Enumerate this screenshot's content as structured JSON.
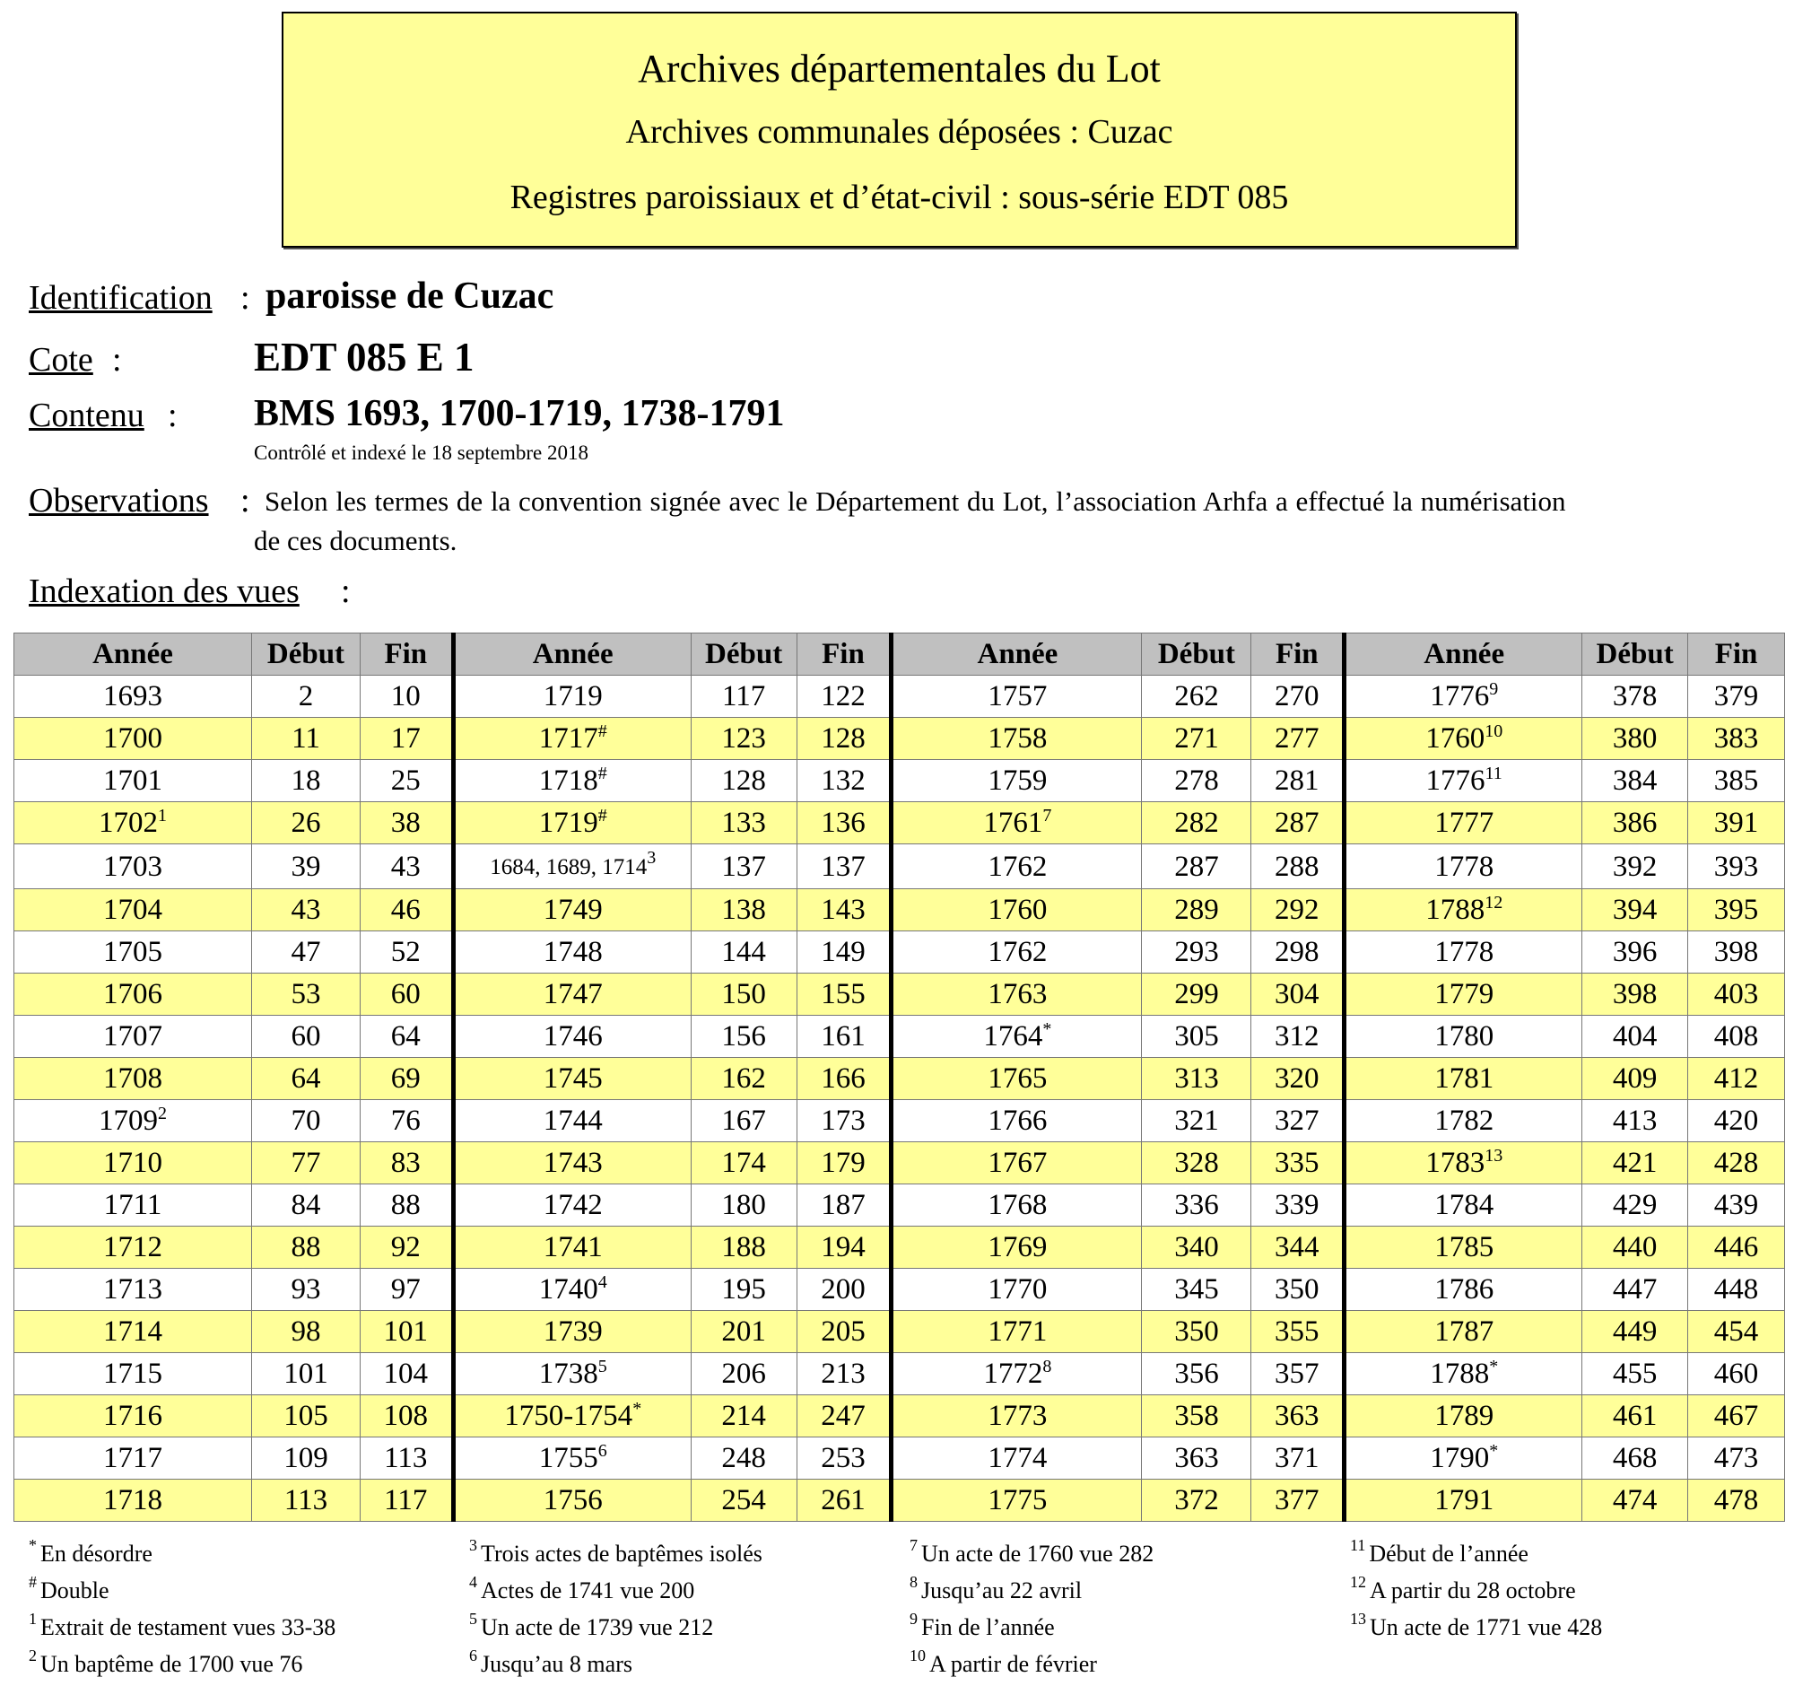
{
  "header": {
    "title": "Archives départementales du Lot",
    "subtitle": "Archives communales déposées : Cuzac",
    "series": "Registres paroissiaux et d’état-civil : sous-série EDT 085"
  },
  "identification": {
    "label": "Identification",
    "value": "paroisse de Cuzac"
  },
  "cote": {
    "label": "Cote",
    "value": "EDT 085 E 1"
  },
  "contenu": {
    "label": "Contenu",
    "value": "BMS 1693, 1700-1719, 1738-1791",
    "note": "Contrôlé et indexé le 18 septembre 2018"
  },
  "observations": {
    "label": "Observations",
    "line1": "Selon les termes de la convention signée avec le Département du Lot, l’association Arhfa a effectué la numérisation",
    "line2": "de ces documents."
  },
  "indexation": {
    "label": "Indexation des vues"
  },
  "separator": ":",
  "table": {
    "headers": [
      "Année",
      "Début",
      "Fin"
    ],
    "groups": [
      [
        {
          "annee": "1693",
          "debut": 2,
          "fin": 10
        },
        {
          "annee": "1700",
          "debut": 11,
          "fin": 17
        },
        {
          "annee": "1701",
          "debut": 18,
          "fin": 25
        },
        {
          "annee": "1702",
          "note": "1",
          "debut": 26,
          "fin": 38
        },
        {
          "annee": "1703",
          "debut": 39,
          "fin": 43
        },
        {
          "annee": "1704",
          "debut": 43,
          "fin": 46
        },
        {
          "annee": "1705",
          "debut": 47,
          "fin": 52
        },
        {
          "annee": "1706",
          "debut": 53,
          "fin": 60
        },
        {
          "annee": "1707",
          "debut": 60,
          "fin": 64
        },
        {
          "annee": "1708",
          "debut": 64,
          "fin": 69
        },
        {
          "annee": "1709",
          "note": "2",
          "debut": 70,
          "fin": 76
        },
        {
          "annee": "1710",
          "debut": 77,
          "fin": 83
        },
        {
          "annee": "1711",
          "debut": 84,
          "fin": 88
        },
        {
          "annee": "1712",
          "debut": 88,
          "fin": 92
        },
        {
          "annee": "1713",
          "debut": 93,
          "fin": 97
        },
        {
          "annee": "1714",
          "debut": 98,
          "fin": 101
        },
        {
          "annee": "1715",
          "debut": 101,
          "fin": 104
        },
        {
          "annee": "1716",
          "debut": 105,
          "fin": 108
        },
        {
          "annee": "1717",
          "debut": 109,
          "fin": 113
        },
        {
          "annee": "1718",
          "debut": 113,
          "fin": 117
        }
      ],
      [
        {
          "annee": "1719",
          "debut": 117,
          "fin": 122
        },
        {
          "annee": "1717",
          "note": "#",
          "debut": 123,
          "fin": 128
        },
        {
          "annee": "1718",
          "note": "#",
          "debut": 128,
          "fin": 132
        },
        {
          "annee": "1719",
          "note": "#",
          "debut": 133,
          "fin": 136
        },
        {
          "annee": "1684, 1689, 1714",
          "note": "3",
          "debut": 137,
          "fin": 137
        },
        {
          "annee": "1749",
          "debut": 138,
          "fin": 143
        },
        {
          "annee": "1748",
          "debut": 144,
          "fin": 149
        },
        {
          "annee": "1747",
          "debut": 150,
          "fin": 155
        },
        {
          "annee": "1746",
          "debut": 156,
          "fin": 161
        },
        {
          "annee": "1745",
          "debut": 162,
          "fin": 166
        },
        {
          "annee": "1744",
          "debut": 167,
          "fin": 173
        },
        {
          "annee": "1743",
          "debut": 174,
          "fin": 179
        },
        {
          "annee": "1742",
          "debut": 180,
          "fin": 187
        },
        {
          "annee": "1741",
          "debut": 188,
          "fin": 194
        },
        {
          "annee": "1740",
          "note": "4",
          "debut": 195,
          "fin": 200
        },
        {
          "annee": "1739",
          "debut": 201,
          "fin": 205
        },
        {
          "annee": "1738",
          "note": "5",
          "debut": 206,
          "fin": 213
        },
        {
          "annee": "1750-1754",
          "note": "*",
          "debut": 214,
          "fin": 247
        },
        {
          "annee": "1755",
          "note": "6",
          "debut": 248,
          "fin": 253
        },
        {
          "annee": "1756",
          "debut": 254,
          "fin": 261
        }
      ],
      [
        {
          "annee": "1757",
          "debut": 262,
          "fin": 270
        },
        {
          "annee": "1758",
          "debut": 271,
          "fin": 277
        },
        {
          "annee": "1759",
          "debut": 278,
          "fin": 281
        },
        {
          "annee": "1761",
          "note": "7",
          "debut": 282,
          "fin": 287
        },
        {
          "annee": "1762",
          "debut": 287,
          "fin": 288
        },
        {
          "annee": "1760",
          "debut": 289,
          "fin": 292
        },
        {
          "annee": "1762",
          "debut": 293,
          "fin": 298
        },
        {
          "annee": "1763",
          "debut": 299,
          "fin": 304
        },
        {
          "annee": "1764",
          "note": "*",
          "debut": 305,
          "fin": 312
        },
        {
          "annee": "1765",
          "debut": 313,
          "fin": 320
        },
        {
          "annee": "1766",
          "debut": 321,
          "fin": 327
        },
        {
          "annee": "1767",
          "debut": 328,
          "fin": 335
        },
        {
          "annee": "1768",
          "debut": 336,
          "fin": 339
        },
        {
          "annee": "1769",
          "debut": 340,
          "fin": 344
        },
        {
          "annee": "1770",
          "debut": 345,
          "fin": 350
        },
        {
          "annee": "1771",
          "debut": 350,
          "fin": 355
        },
        {
          "annee": "1772",
          "note": "8",
          "debut": 356,
          "fin": 357
        },
        {
          "annee": "1773",
          "debut": 358,
          "fin": 363
        },
        {
          "annee": "1774",
          "debut": 363,
          "fin": 371
        },
        {
          "annee": "1775",
          "debut": 372,
          "fin": 377
        }
      ],
      [
        {
          "annee": "1776",
          "note": "9",
          "debut": 378,
          "fin": 379
        },
        {
          "annee": "1760",
          "note": "10",
          "debut": 380,
          "fin": 383
        },
        {
          "annee": "1776",
          "note": "11",
          "debut": 384,
          "fin": 385
        },
        {
          "annee": "1777",
          "debut": 386,
          "fin": 391
        },
        {
          "annee": "1778",
          "debut": 392,
          "fin": 393
        },
        {
          "annee": "1788",
          "note": "12",
          "debut": 394,
          "fin": 395
        },
        {
          "annee": "1778",
          "debut": 396,
          "fin": 398
        },
        {
          "annee": "1779",
          "debut": 398,
          "fin": 403
        },
        {
          "annee": "1780",
          "debut": 404,
          "fin": 408
        },
        {
          "annee": "1781",
          "debut": 409,
          "fin": 412
        },
        {
          "annee": "1782",
          "debut": 413,
          "fin": 420
        },
        {
          "annee": "1783",
          "note": "13",
          "debut": 421,
          "fin": 428
        },
        {
          "annee": "1784",
          "debut": 429,
          "fin": 439
        },
        {
          "annee": "1785",
          "debut": 440,
          "fin": 446
        },
        {
          "annee": "1786",
          "debut": 447,
          "fin": 448
        },
        {
          "annee": "1787",
          "debut": 449,
          "fin": 454
        },
        {
          "annee": "1788",
          "note": "*",
          "debut": 455,
          "fin": 460
        },
        {
          "annee": "1789",
          "debut": 461,
          "fin": 467
        },
        {
          "annee": "1790",
          "note": "*",
          "debut": 468,
          "fin": 473
        },
        {
          "annee": "1791",
          "debut": 474,
          "fin": 478
        }
      ]
    ]
  },
  "footnotes": [
    [
      {
        "mark": "*",
        "text": "En désordre"
      },
      {
        "mark": "#",
        "text": "Double"
      },
      {
        "mark": "1",
        "text": "Extrait de testament vues 33-38"
      },
      {
        "mark": "2",
        "text": "Un baptême de 1700 vue 76"
      }
    ],
    [
      {
        "mark": "3",
        "text": "Trois actes de baptêmes isolés"
      },
      {
        "mark": "4",
        "text": "Actes de 1741 vue 200"
      },
      {
        "mark": "5",
        "text": "Un acte de 1739 vue 212"
      },
      {
        "mark": "6",
        "text": "Jusqu’au 8 mars"
      }
    ],
    [
      {
        "mark": "7",
        "text": "Un acte de 1760 vue 282"
      },
      {
        "mark": "8",
        "text": "Jusqu’au 22 avril"
      },
      {
        "mark": "9",
        "text": "Fin de l’année"
      },
      {
        "mark": "10",
        "text": "A partir de février"
      }
    ],
    [
      {
        "mark": "11",
        "text": "Début de l’année"
      },
      {
        "mark": "12",
        "text": "A partir du 28 octobre"
      },
      {
        "mark": "13",
        "text": "Un acte de 1771 vue 428"
      }
    ]
  ]
}
